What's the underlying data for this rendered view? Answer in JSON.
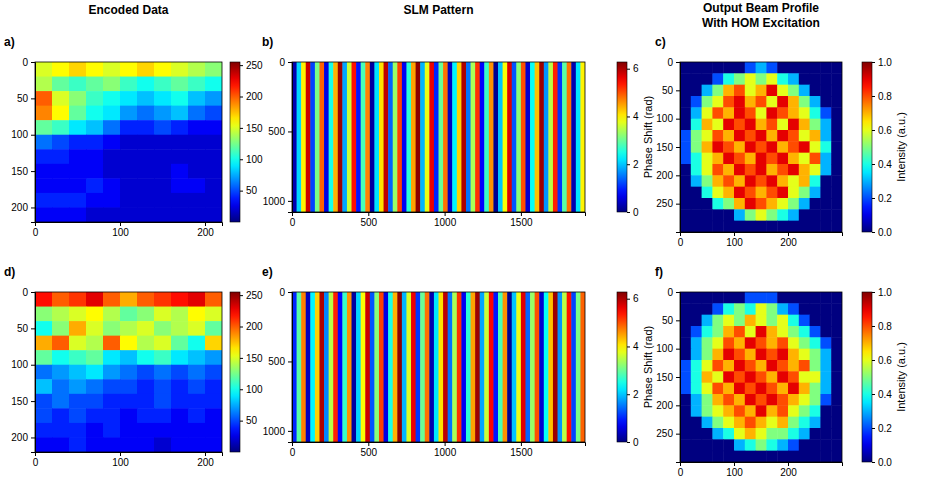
{
  "chart_data": [
    {
      "type": "heatmap",
      "title": "Encoded Data",
      "panel_label": "a)",
      "color": "jet",
      "xlim": [
        0,
        220
      ],
      "ylim": [
        0,
        220
      ],
      "xticks": [
        0,
        100,
        200
      ],
      "yticks": [
        0,
        50,
        100,
        150,
        200
      ],
      "cells": [
        [
          150,
          160,
          170,
          160,
          150,
          160,
          170,
          160,
          150,
          140,
          130
        ],
        [
          140,
          120,
          110,
          120,
          130,
          110,
          100,
          110,
          120,
          110,
          100
        ],
        [
          200,
          150,
          130,
          110,
          100,
          90,
          80,
          90,
          100,
          80,
          70
        ],
        [
          190,
          160,
          120,
          100,
          90,
          70,
          60,
          70,
          80,
          60,
          50
        ],
        [
          120,
          110,
          90,
          80,
          60,
          40,
          40,
          50,
          40,
          30,
          30
        ],
        [
          60,
          50,
          40,
          40,
          30,
          20,
          20,
          20,
          20,
          20,
          20
        ],
        [
          40,
          40,
          30,
          30,
          20,
          20,
          20,
          20,
          20,
          20,
          20
        ],
        [
          30,
          30,
          30,
          30,
          20,
          20,
          20,
          20,
          30,
          20,
          20
        ],
        [
          30,
          30,
          30,
          40,
          30,
          20,
          20,
          20,
          30,
          30,
          20
        ],
        [
          40,
          40,
          40,
          30,
          30,
          20,
          20,
          20,
          20,
          20,
          20
        ],
        [
          30,
          30,
          30,
          20,
          20,
          20,
          20,
          20,
          20,
          20,
          20
        ]
      ],
      "colorbar": {
        "range": [
          0,
          255
        ],
        "ticks": [
          50,
          100,
          150,
          200,
          250
        ]
      }
    },
    {
      "type": "heatmap",
      "title": "SLM Pattern",
      "panel_label": "b)",
      "color": "jet",
      "xlim": [
        0,
        1920
      ],
      "ylim": [
        0,
        1080
      ],
      "xticks": [
        0,
        500,
        1000,
        1500
      ],
      "yticks": [
        0,
        500,
        1000
      ],
      "cells": [
        [
          0.3,
          2.1,
          4.0,
          5.8,
          1.2,
          3.1,
          4.9,
          0.6,
          2.5,
          4.4,
          6.1,
          1.8,
          3.6,
          5.4,
          0.9,
          2.8,
          4.7,
          0.2,
          2.2,
          4.1,
          5.9,
          1.4,
          3.3,
          5.1,
          0.7,
          2.6,
          4.5,
          6.2,
          1.9,
          3.8,
          5.6,
          1.0,
          3.0,
          4.8,
          0.4,
          2.3,
          4.2,
          6.0,
          1.5,
          3.4,
          5.2,
          0.8,
          2.7,
          4.6,
          0.1,
          2.0,
          3.9,
          5.7,
          1.3,
          3.2,
          5.0,
          0.5,
          2.4,
          4.3,
          6.1,
          1.7,
          3.5,
          5.3,
          1.1,
          2.9,
          4.8,
          0.3,
          2.2,
          4.0
        ]
      ],
      "colorbar": {
        "range": [
          0,
          6.28
        ],
        "ticks": [
          0,
          2,
          4,
          6
        ],
        "label": "Phase Shift (rad)"
      }
    },
    {
      "type": "heatmap",
      "title": "Output Beam Profile With HOM Excitation",
      "panel_label": "c)",
      "color": "jet",
      "xlim": [
        0,
        300
      ],
      "ylim": [
        0,
        300
      ],
      "xticks": [
        0,
        100,
        200
      ],
      "yticks": [
        0,
        50,
        100,
        150,
        200,
        250
      ],
      "cells": [
        [
          0,
          0,
          0,
          0,
          0,
          0,
          0.2,
          0.3,
          0.2,
          0,
          0,
          0,
          0,
          0,
          0
        ],
        [
          0,
          0,
          0,
          0.2,
          0.4,
          0.5,
          0.6,
          0.5,
          0.6,
          0.4,
          0.3,
          0,
          0,
          0,
          0
        ],
        [
          0,
          0,
          0.3,
          0.5,
          0.7,
          0.8,
          0.6,
          0.7,
          0.9,
          0.6,
          0.5,
          0.3,
          0,
          0,
          0
        ],
        [
          0,
          0.2,
          0.5,
          0.6,
          0.8,
          0.9,
          0.7,
          0.8,
          0.6,
          0.9,
          0.7,
          0.5,
          0.3,
          0,
          0
        ],
        [
          0,
          0.3,
          0.6,
          0.8,
          0.7,
          0.9,
          0.8,
          0.6,
          0.9,
          0.8,
          0.7,
          0.6,
          0.4,
          0.2,
          0
        ],
        [
          0,
          0.4,
          0.7,
          0.6,
          0.9,
          0.8,
          0.9,
          0.7,
          0.8,
          0.6,
          0.9,
          0.7,
          0.5,
          0.3,
          0
        ],
        [
          0.2,
          0.5,
          0.6,
          0.8,
          0.7,
          0.9,
          0.8,
          0.9,
          0.7,
          0.9,
          0.8,
          0.6,
          0.7,
          0.3,
          0
        ],
        [
          0.2,
          0.5,
          0.7,
          0.9,
          0.8,
          0.7,
          0.9,
          0.8,
          0.9,
          0.7,
          0.8,
          0.9,
          0.6,
          0.4,
          0
        ],
        [
          0.2,
          0.4,
          0.6,
          0.7,
          0.9,
          0.8,
          0.7,
          0.9,
          0.8,
          0.9,
          0.7,
          0.6,
          0.8,
          0.3,
          0
        ],
        [
          0,
          0.4,
          0.6,
          0.8,
          0.7,
          0.9,
          0.8,
          0.9,
          0.7,
          0.8,
          0.9,
          0.7,
          0.6,
          0.3,
          0
        ],
        [
          0,
          0.3,
          0.5,
          0.7,
          0.8,
          0.7,
          0.9,
          0.8,
          0.9,
          0.7,
          0.6,
          0.7,
          0.4,
          0,
          0
        ],
        [
          0,
          0,
          0.4,
          0.6,
          0.7,
          0.9,
          0.8,
          0.7,
          0.8,
          0.9,
          0.6,
          0.5,
          0.3,
          0,
          0
        ],
        [
          0,
          0,
          0,
          0.4,
          0.5,
          0.7,
          0.9,
          0.8,
          0.7,
          0.6,
          0.5,
          0.3,
          0,
          0,
          0
        ],
        [
          0,
          0,
          0,
          0,
          0,
          0.3,
          0.5,
          0.6,
          0.5,
          0.4,
          0.3,
          0,
          0,
          0,
          0
        ],
        [
          0,
          0,
          0,
          0,
          0,
          0,
          0,
          0,
          0,
          0,
          0,
          0,
          0,
          0,
          0
        ]
      ],
      "colorbar": {
        "range": [
          0,
          1
        ],
        "ticks": [
          {
            "value": 0,
            "label": "0.0"
          },
          {
            "value": 0.2,
            "label": "0.2"
          },
          {
            "value": 0.4,
            "label": "0.4"
          },
          {
            "value": 0.6,
            "label": "0.6"
          },
          {
            "value": 0.8,
            "label": "0.8"
          },
          {
            "value": 1,
            "label": "1.0"
          }
        ],
        "label": "Intensity (a.u.)"
      }
    },
    {
      "type": "heatmap",
      "panel_label": "d)",
      "color": "jet",
      "xlim": [
        0,
        220
      ],
      "ylim": [
        0,
        220
      ],
      "xticks": [
        0,
        100,
        200
      ],
      "yticks": [
        0,
        50,
        100,
        150,
        200
      ],
      "cells": [
        [
          220,
          200,
          210,
          230,
          200,
          180,
          200,
          210,
          220,
          230,
          200
        ],
        [
          130,
          140,
          150,
          160,
          140,
          120,
          130,
          150,
          140,
          160,
          150
        ],
        [
          100,
          130,
          180,
          150,
          130,
          140,
          150,
          130,
          140,
          150,
          120
        ],
        [
          180,
          200,
          150,
          140,
          200,
          160,
          140,
          150,
          120,
          100,
          170
        ],
        [
          120,
          100,
          110,
          120,
          90,
          80,
          100,
          110,
          90,
          80,
          70
        ],
        [
          60,
          70,
          80,
          90,
          70,
          60,
          50,
          60,
          50,
          60,
          50
        ],
        [
          80,
          60,
          70,
          60,
          50,
          50,
          40,
          50,
          40,
          50,
          40
        ],
        [
          50,
          60,
          50,
          50,
          40,
          40,
          40,
          50,
          40,
          40,
          40
        ],
        [
          50,
          40,
          50,
          40,
          40,
          30,
          40,
          40,
          30,
          40,
          30
        ],
        [
          40,
          40,
          40,
          30,
          40,
          30,
          30,
          30,
          30,
          30,
          30
        ],
        [
          30,
          30,
          40,
          30,
          30,
          30,
          30,
          20,
          30,
          30,
          30
        ]
      ],
      "colorbar": {
        "range": [
          0,
          255
        ],
        "ticks": [
          50,
          100,
          150,
          200,
          250
        ]
      }
    },
    {
      "type": "heatmap",
      "panel_label": "e)",
      "color": "jet",
      "xlim": [
        0,
        1920
      ],
      "ylim": [
        0,
        1080
      ],
      "xticks": [
        0,
        500,
        1000,
        1500
      ],
      "yticks": [
        0,
        500,
        1000
      ],
      "cells": [
        [
          1.0,
          2.9,
          4.7,
          0.4,
          2.3,
          4.2,
          6.0,
          1.6,
          3.5,
          5.3,
          0.8,
          2.7,
          4.6,
          0.2,
          2.1,
          3.9,
          5.8,
          1.3,
          3.2,
          5.1,
          0.6,
          2.5,
          4.4,
          6.2,
          1.9,
          3.7,
          5.6,
          1.1,
          3.0,
          4.8,
          0.3,
          2.2,
          4.1,
          5.9,
          1.5,
          3.4,
          5.2,
          0.7,
          2.6,
          4.5,
          6.1,
          1.8,
          3.6,
          5.5,
          0.9,
          2.8,
          4.6,
          0.1,
          2.0,
          3.8,
          5.7,
          1.4,
          3.3,
          5.0,
          0.5,
          2.4,
          4.3,
          6.1,
          1.7,
          3.5,
          5.4,
          1.2,
          3.1,
          4.9
        ]
      ],
      "colorbar": {
        "range": [
          0,
          6.28
        ],
        "ticks": [
          0,
          2,
          4,
          6
        ],
        "label": "Phase Shift (rad)"
      }
    },
    {
      "type": "heatmap",
      "panel_label": "f)",
      "color": "jet",
      "xlim": [
        0,
        300
      ],
      "ylim": [
        0,
        300
      ],
      "xticks": [
        0,
        100,
        200
      ],
      "yticks": [
        0,
        50,
        100,
        150,
        200,
        250
      ],
      "cells": [
        [
          0,
          0,
          0,
          0,
          0,
          0,
          0.2,
          0.2,
          0.2,
          0,
          0,
          0,
          0,
          0,
          0
        ],
        [
          0,
          0,
          0,
          0.2,
          0.4,
          0.5,
          0.4,
          0.6,
          0.5,
          0.3,
          0.2,
          0,
          0,
          0,
          0
        ],
        [
          0,
          0,
          0.3,
          0.5,
          0.6,
          0.5,
          0.7,
          0.6,
          0.5,
          0.6,
          0.4,
          0.2,
          0,
          0,
          0
        ],
        [
          0,
          0.2,
          0.4,
          0.5,
          0.7,
          0.8,
          0.6,
          0.9,
          0.7,
          0.6,
          0.5,
          0.4,
          0.2,
          0,
          0
        ],
        [
          0,
          0.3,
          0.5,
          0.6,
          0.8,
          0.7,
          0.9,
          0.8,
          0.7,
          0.8,
          0.6,
          0.5,
          0.4,
          0.2,
          0
        ],
        [
          0,
          0.3,
          0.5,
          0.7,
          0.9,
          0.8,
          0.7,
          0.9,
          0.8,
          0.9,
          0.7,
          0.6,
          0.5,
          0.3,
          0
        ],
        [
          0.2,
          0.4,
          0.6,
          0.8,
          0.7,
          0.9,
          0.8,
          0.7,
          0.9,
          0.8,
          0.7,
          0.8,
          0.5,
          0.3,
          0
        ],
        [
          0.2,
          0.4,
          0.7,
          0.6,
          0.9,
          0.8,
          0.9,
          0.8,
          0.7,
          0.9,
          0.8,
          0.6,
          0.6,
          0.3,
          0
        ],
        [
          0.2,
          0.4,
          0.6,
          0.8,
          0.7,
          0.9,
          0.8,
          0.9,
          0.8,
          0.7,
          0.9,
          0.7,
          0.5,
          0.3,
          0
        ],
        [
          0,
          0.3,
          0.5,
          0.7,
          0.8,
          0.7,
          0.9,
          0.8,
          0.9,
          0.8,
          0.7,
          0.6,
          0.5,
          0.2,
          0
        ],
        [
          0,
          0.3,
          0.5,
          0.6,
          0.7,
          0.8,
          0.7,
          0.9,
          0.7,
          0.8,
          0.6,
          0.5,
          0.4,
          0,
          0
        ],
        [
          0,
          0,
          0.3,
          0.5,
          0.6,
          0.7,
          0.8,
          0.7,
          0.6,
          0.7,
          0.5,
          0.4,
          0.3,
          0,
          0
        ],
        [
          0,
          0,
          0,
          0.3,
          0.4,
          0.6,
          0.7,
          0.6,
          0.5,
          0.5,
          0.4,
          0.3,
          0,
          0,
          0
        ],
        [
          0,
          0,
          0,
          0,
          0,
          0.3,
          0.4,
          0.5,
          0.4,
          0.3,
          0.2,
          0,
          0,
          0,
          0
        ],
        [
          0,
          0,
          0,
          0,
          0,
          0,
          0,
          0,
          0,
          0,
          0,
          0,
          0,
          0,
          0
        ]
      ],
      "colorbar": {
        "range": [
          0,
          1
        ],
        "ticks": [
          {
            "value": 0,
            "label": "0.0"
          },
          {
            "value": 0.2,
            "label": "0.2"
          },
          {
            "value": 0.4,
            "label": "0.4"
          },
          {
            "value": 0.6,
            "label": "0.6"
          },
          {
            "value": 0.8,
            "label": "0.8"
          },
          {
            "value": 1,
            "label": "1.0"
          }
        ],
        "label": "Intensity (a.u.)"
      }
    }
  ]
}
